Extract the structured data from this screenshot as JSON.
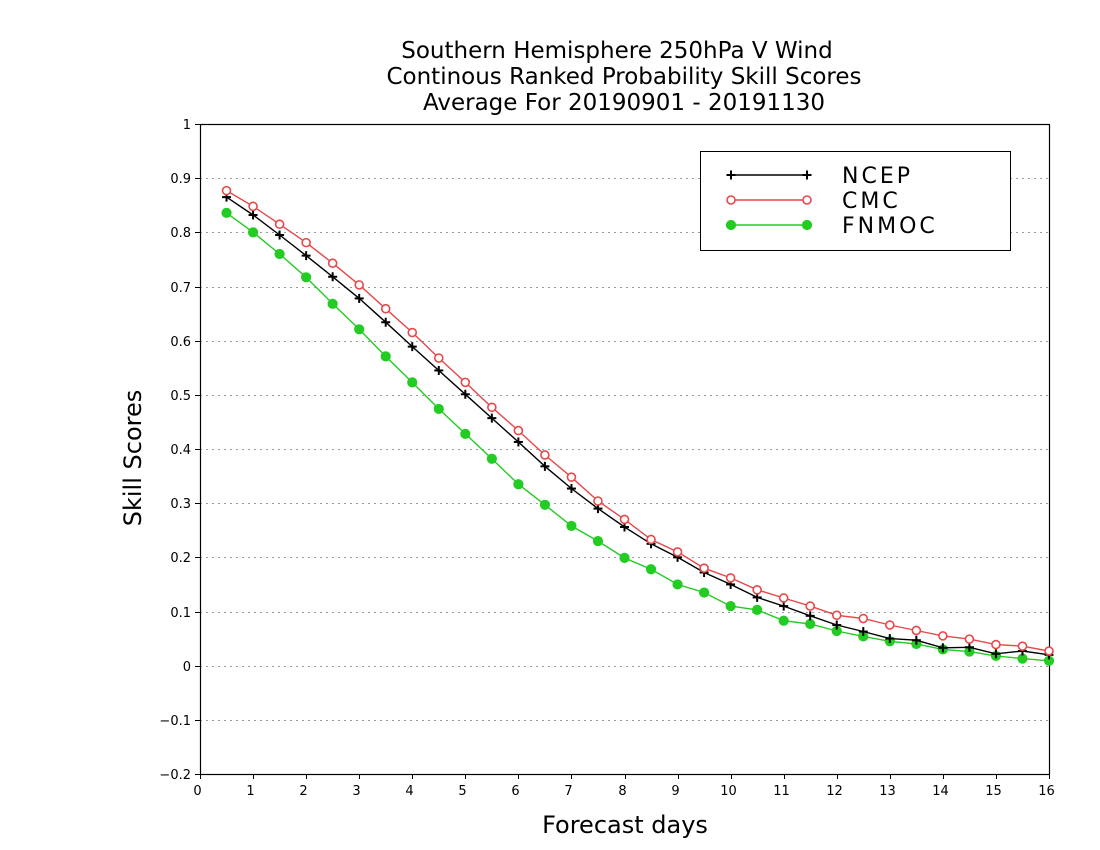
{
  "chart_data": {
    "type": "line",
    "title_lines": [
      "Southern Hemisphere 250hPa V Wind",
      "Continous Ranked Probability Skill Scores",
      "Average For 20190901 - 20191130"
    ],
    "xlabel": "Forecast days",
    "ylabel": "Skill Scores",
    "xlim": [
      0,
      16
    ],
    "ylim": [
      -0.2,
      1
    ],
    "xticks": [
      "0",
      "1",
      "2",
      "3",
      "4",
      "5",
      "6",
      "7",
      "8",
      "9",
      "10",
      "11",
      "12",
      "13",
      "14",
      "15",
      "16"
    ],
    "yticks": [
      "−0.2",
      "−0.1",
      "0",
      "0.1",
      "0.2",
      "0.3",
      "0.4",
      "0.5",
      "0.6",
      "0.7",
      "0.8",
      "0.9",
      "1"
    ],
    "grid": true,
    "legend_position": "top-right",
    "x": [
      0.5,
      1,
      1.5,
      2,
      2.5,
      3,
      3.5,
      4,
      4.5,
      5,
      5.5,
      6,
      6.5,
      7,
      7.5,
      8,
      8.5,
      9,
      9.5,
      10,
      10.5,
      11,
      11.5,
      12,
      12.5,
      13,
      13.5,
      14,
      14.5,
      15,
      15.5,
      16
    ],
    "series": [
      {
        "name": "NCEP",
        "color": "#000000",
        "marker": "plus",
        "values": [
          0.865,
          0.832,
          0.795,
          0.757,
          0.718,
          0.678,
          0.634,
          0.589,
          0.545,
          0.501,
          0.457,
          0.413,
          0.368,
          0.327,
          0.29,
          0.256,
          0.225,
          0.2,
          0.172,
          0.15,
          0.126,
          0.11,
          0.092,
          0.075,
          0.063,
          0.05,
          0.047,
          0.033,
          0.034,
          0.022,
          0.027,
          0.02
        ]
      },
      {
        "name": "CMC",
        "color": "#e8474a",
        "marker": "open-circle",
        "values": [
          0.877,
          0.848,
          0.815,
          0.781,
          0.743,
          0.703,
          0.659,
          0.615,
          0.568,
          0.523,
          0.477,
          0.434,
          0.389,
          0.348,
          0.304,
          0.27,
          0.233,
          0.21,
          0.18,
          0.162,
          0.14,
          0.125,
          0.11,
          0.093,
          0.087,
          0.075,
          0.065,
          0.055,
          0.049,
          0.039,
          0.036,
          0.027
        ]
      },
      {
        "name": "FNMOC",
        "color": "#22cc22",
        "marker": "filled-circle",
        "values": [
          0.836,
          0.8,
          0.76,
          0.717,
          0.668,
          0.621,
          0.571,
          0.523,
          0.474,
          0.428,
          0.382,
          0.335,
          0.297,
          0.258,
          0.23,
          0.199,
          0.178,
          0.15,
          0.135,
          0.11,
          0.103,
          0.083,
          0.077,
          0.064,
          0.054,
          0.045,
          0.04,
          0.03,
          0.026,
          0.018,
          0.013,
          0.009
        ]
      }
    ]
  }
}
